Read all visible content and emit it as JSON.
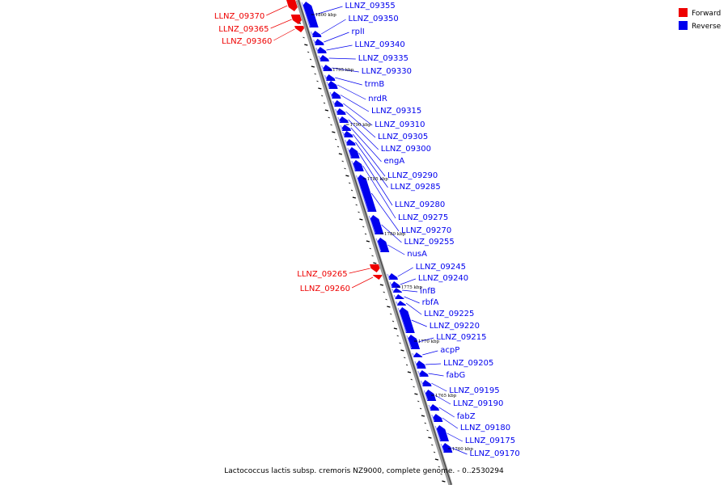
{
  "legend": {
    "items": [
      {
        "label": "Forward",
        "color": "#ee0000"
      },
      {
        "label": "Reverse",
        "color": "#0000ee"
      }
    ]
  },
  "caption": "Lactococcus lactis subsp. cremoris NZ9000, complete genome. - 0..2530294",
  "ticks": [
    {
      "label": "1800 kbp",
      "pos": 1800000
    },
    {
      "label": "1795 kbp",
      "pos": 1795000
    },
    {
      "label": "1790 kbp",
      "pos": 1790000
    },
    {
      "label": "1785 kbp",
      "pos": 1785000
    },
    {
      "label": "1780 kbp",
      "pos": 1780000
    },
    {
      "label": "1775 kbp",
      "pos": 1775000
    },
    {
      "label": "1770 kbp",
      "pos": 1770000
    },
    {
      "label": "1765 kbp",
      "pos": 1765000
    },
    {
      "label": "1760 kbp",
      "pos": 1760000
    }
  ],
  "forward_genes": [
    "LLNZ_09370",
    "LLNZ_09365",
    "LLNZ_09360",
    "LLNZ_09265",
    "LLNZ_09260"
  ],
  "reverse_genes": [
    "LLNZ_09355",
    "LLNZ_09350",
    "rplI",
    "LLNZ_09340",
    "LLNZ_09335",
    "LLNZ_09330",
    "trmB",
    "nrdR",
    "LLNZ_09315",
    "LLNZ_09310",
    "LLNZ_09305",
    "LLNZ_09300",
    "engA",
    "LLNZ_09290",
    "LLNZ_09285",
    "LLNZ_09280",
    "LLNZ_09275",
    "LLNZ_09270",
    "LLNZ_09255",
    "nusA",
    "LLNZ_09245",
    "LLNZ_09240",
    "infB",
    "rbfA",
    "LLNZ_09225",
    "LLNZ_09220",
    "LLNZ_09215",
    "acpP",
    "LLNZ_09205",
    "fabG",
    "LLNZ_09195",
    "LLNZ_09190",
    "fabZ",
    "LLNZ_09180",
    "LLNZ_09175",
    "LLNZ_09170"
  ]
}
